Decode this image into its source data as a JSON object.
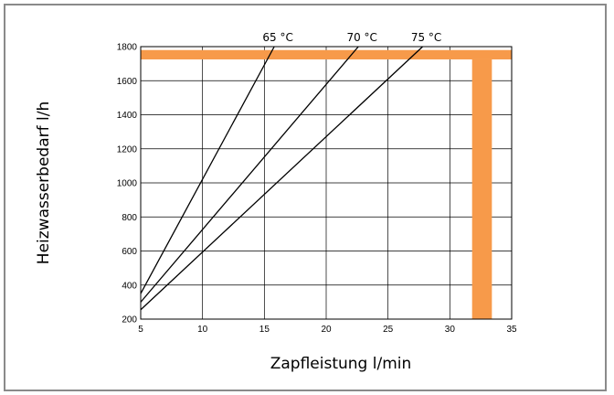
{
  "chart_data": {
    "type": "line",
    "title": "",
    "xlabel": "Zapfleistung l/min",
    "ylabel": "Heizwasserbedarf l/h",
    "xlim": [
      5,
      35
    ],
    "ylim": [
      200,
      1800
    ],
    "x_ticks": [
      "5",
      "10",
      "15",
      "20",
      "25",
      "30",
      "35"
    ],
    "y_ticks": [
      "200",
      "400",
      "600",
      "800",
      "1000",
      "1200",
      "1400",
      "1600",
      "1800"
    ],
    "grid": true,
    "series": [
      {
        "name": "65 °C",
        "points": [
          [
            5,
            350
          ],
          [
            15.8,
            1800
          ]
        ]
      },
      {
        "name": "70 °C",
        "points": [
          [
            5,
            300
          ],
          [
            22.6,
            1800
          ]
        ]
      },
      {
        "name": "75 °C",
        "points": [
          [
            5,
            255
          ],
          [
            27.8,
            1800
          ]
        ]
      }
    ],
    "highlights": {
      "color": "#f79a4a",
      "horizontal_band": {
        "y_from": 1725,
        "y_to": 1780,
        "x_from": 5,
        "x_to": 35
      },
      "vertical_band": {
        "x_from": 31.8,
        "x_to": 33.4,
        "y_from": 200,
        "y_to": 1725
      }
    }
  }
}
